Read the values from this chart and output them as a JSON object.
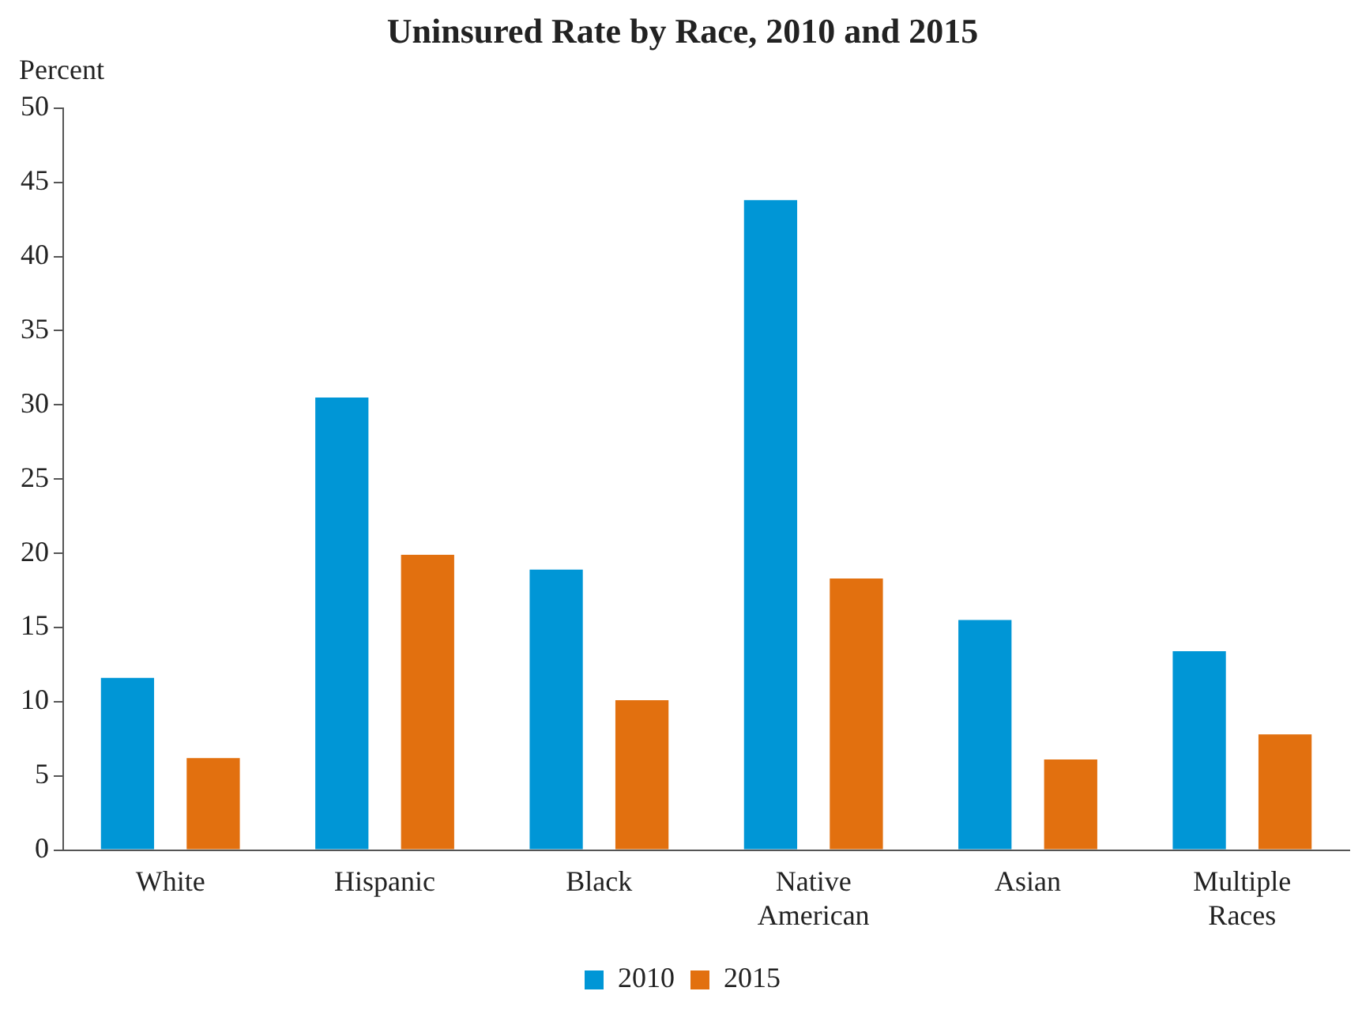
{
  "chart_data": {
    "type": "bar",
    "title": "Uninsured Rate by Race, 2010 and 2015",
    "ylabel": "Percent",
    "categories": [
      "White",
      "Hispanic",
      "Black",
      "Native American",
      "Asian",
      "Multiple Races"
    ],
    "series": [
      {
        "name": "2010",
        "color": "#0096d6",
        "values": [
          11.6,
          30.5,
          18.9,
          43.8,
          15.5,
          13.4
        ]
      },
      {
        "name": "2015",
        "color": "#e2700f",
        "values": [
          6.2,
          19.9,
          10.1,
          18.3,
          6.1,
          7.8
        ]
      }
    ],
    "ylim": [
      0,
      50
    ],
    "yticks": [
      0,
      5,
      10,
      15,
      20,
      25,
      30,
      35,
      40,
      45,
      50
    ],
    "grid": false,
    "legend": "bottom"
  }
}
